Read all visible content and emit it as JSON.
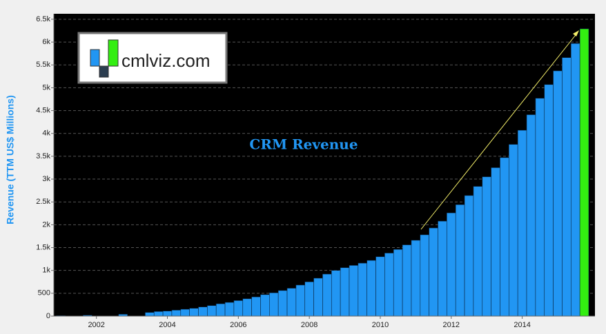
{
  "chart_data": {
    "type": "bar",
    "title": "CRM Revenue",
    "y_label": "Revenue (TTM US$ Millions)",
    "watermark": "cmlviz.com",
    "x": [
      2001.0,
      2001.25,
      2001.5,
      2001.75,
      2002.0,
      2002.25,
      2002.5,
      2002.75,
      2003.0,
      2003.25,
      2003.5,
      2003.75,
      2004.0,
      2004.25,
      2004.5,
      2004.75,
      2005.0,
      2005.25,
      2005.5,
      2005.75,
      2006.0,
      2006.25,
      2006.5,
      2006.75,
      2007.0,
      2007.25,
      2007.5,
      2007.75,
      2008.0,
      2008.25,
      2008.5,
      2008.75,
      2009.0,
      2009.25,
      2009.5,
      2009.75,
      2010.0,
      2010.25,
      2010.5,
      2010.75,
      2011.0,
      2011.25,
      2011.5,
      2011.75,
      2012.0,
      2012.25,
      2012.5,
      2012.75,
      2013.0,
      2013.25,
      2013.5,
      2013.75,
      2014.0,
      2014.25,
      2014.5,
      2014.75,
      2015.0,
      2015.25,
      2015.5,
      2015.75
    ],
    "values": [
      10,
      0,
      0,
      20,
      0,
      0,
      0,
      40,
      0,
      0,
      80,
      100,
      110,
      130,
      150,
      170,
      200,
      230,
      270,
      300,
      340,
      380,
      420,
      470,
      510,
      560,
      610,
      680,
      750,
      830,
      920,
      1000,
      1060,
      1110,
      1160,
      1220,
      1300,
      1380,
      1460,
      1560,
      1660,
      1780,
      1930,
      2080,
      2260,
      2440,
      2640,
      2840,
      3050,
      3250,
      3470,
      3760,
      4070,
      4410,
      4770,
      5070,
      5370,
      5660,
      5970,
      6290
    ],
    "colors": [
      "#2196f3",
      "#2196f3",
      "#2196f3",
      "#2196f3",
      "#2196f3",
      "#2196f3",
      "#2196f3",
      "#2196f3",
      "#2196f3",
      "#2196f3",
      "#2196f3",
      "#2196f3",
      "#2196f3",
      "#2196f3",
      "#2196f3",
      "#2196f3",
      "#2196f3",
      "#2196f3",
      "#2196f3",
      "#2196f3",
      "#2196f3",
      "#2196f3",
      "#2196f3",
      "#2196f3",
      "#2196f3",
      "#2196f3",
      "#2196f3",
      "#2196f3",
      "#2196f3",
      "#2196f3",
      "#2196f3",
      "#2196f3",
      "#2196f3",
      "#2196f3",
      "#2196f3",
      "#2196f3",
      "#2196f3",
      "#2196f3",
      "#2196f3",
      "#2196f3",
      "#2196f3",
      "#2196f3",
      "#2196f3",
      "#2196f3",
      "#2196f3",
      "#2196f3",
      "#2196f3",
      "#2196f3",
      "#2196f3",
      "#2196f3",
      "#2196f3",
      "#2196f3",
      "#2196f3",
      "#2196f3",
      "#2196f3",
      "#2196f3",
      "#2196f3",
      "#2196f3",
      "#2196f3",
      "#33ee11"
    ],
    "xlim": [
      2000.8,
      2016.05
    ],
    "xticks": [
      2002,
      2004,
      2006,
      2008,
      2010,
      2012,
      2014
    ],
    "ylim": [
      0,
      6620
    ],
    "yticks": [
      0,
      500,
      {
        "value": 1000,
        "label": "1k"
      },
      {
        "value": 1500,
        "label": "1.5k"
      },
      {
        "value": 2000,
        "label": "2k"
      },
      {
        "value": 2500,
        "label": "2.5k"
      },
      {
        "value": 3000,
        "label": "3k"
      },
      {
        "value": 3500,
        "label": "3.5k"
      },
      {
        "value": 4000,
        "label": "4k"
      },
      {
        "value": 4500,
        "label": "4.5k"
      },
      {
        "value": 5000,
        "label": "5k"
      },
      {
        "value": 5500,
        "label": "5.5k"
      },
      {
        "value": 6000,
        "label": "6k"
      },
      {
        "value": 6500,
        "label": "6.5k"
      }
    ],
    "grid": true
  }
}
